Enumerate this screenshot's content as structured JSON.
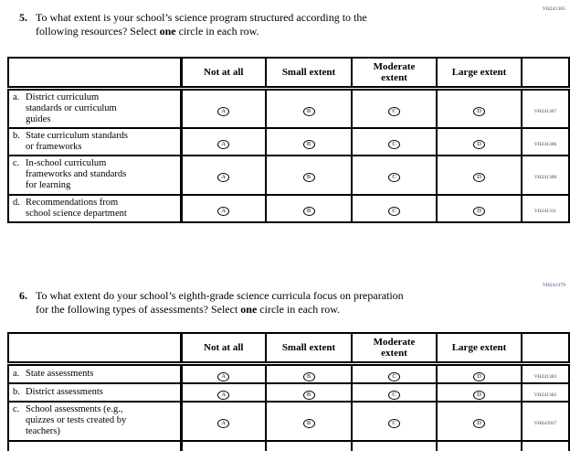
{
  "colors": {
    "code_text": "#2e3a66",
    "border": "#000000"
  },
  "q5": {
    "number": "5.",
    "vh_code": "VH241305",
    "line1": "To what extent is your school’s science program structured according to the",
    "line2_pre": "following resources? Select ",
    "line2_bold": "one",
    "line2_post": " circle in each row.",
    "table": {
      "columns": [
        "Not at all",
        "Small extent",
        "Moderate\nextent",
        "Large extent"
      ],
      "option_letters": [
        "A",
        "B",
        "C",
        "D"
      ],
      "rows": [
        {
          "letter": "a.",
          "label": "District curriculum\nstandards or curriculum\nguides",
          "code": "VH241307"
        },
        {
          "letter": "b.",
          "label": "State curriculum standards\nor frameworks",
          "code": "VH241306"
        },
        {
          "letter": "c.",
          "label": "In-school curriculum\nframeworks and standards\nfor learning",
          "code": "VH241309"
        },
        {
          "letter": "d.",
          "label": "Recommendations from\nschool science department",
          "code": "VH241311"
        }
      ]
    }
  },
  "q6": {
    "number": "6.",
    "vh_code": "VH241379",
    "line1": "To what extent do your school’s eighth-grade science curricula focus on preparation",
    "line2_pre": "for the following types of assessments? Select ",
    "line2_bold": "one",
    "line2_post": " circle in each row.",
    "table": {
      "columns": [
        "Not at all",
        "Small extent",
        "Moderate\nextent",
        "Large extent"
      ],
      "option_letters": [
        "A",
        "B",
        "C",
        "D"
      ],
      "rows": [
        {
          "letter": "a.",
          "label": "State assessments",
          "code": "VH241383"
        },
        {
          "letter": "b.",
          "label": "District assessments",
          "code": "VH241382"
        },
        {
          "letter": "c.",
          "label": "School assessments (e.g.,\nquizzes or tests created by\nteachers)",
          "code": "VH643937"
        }
      ]
    }
  }
}
